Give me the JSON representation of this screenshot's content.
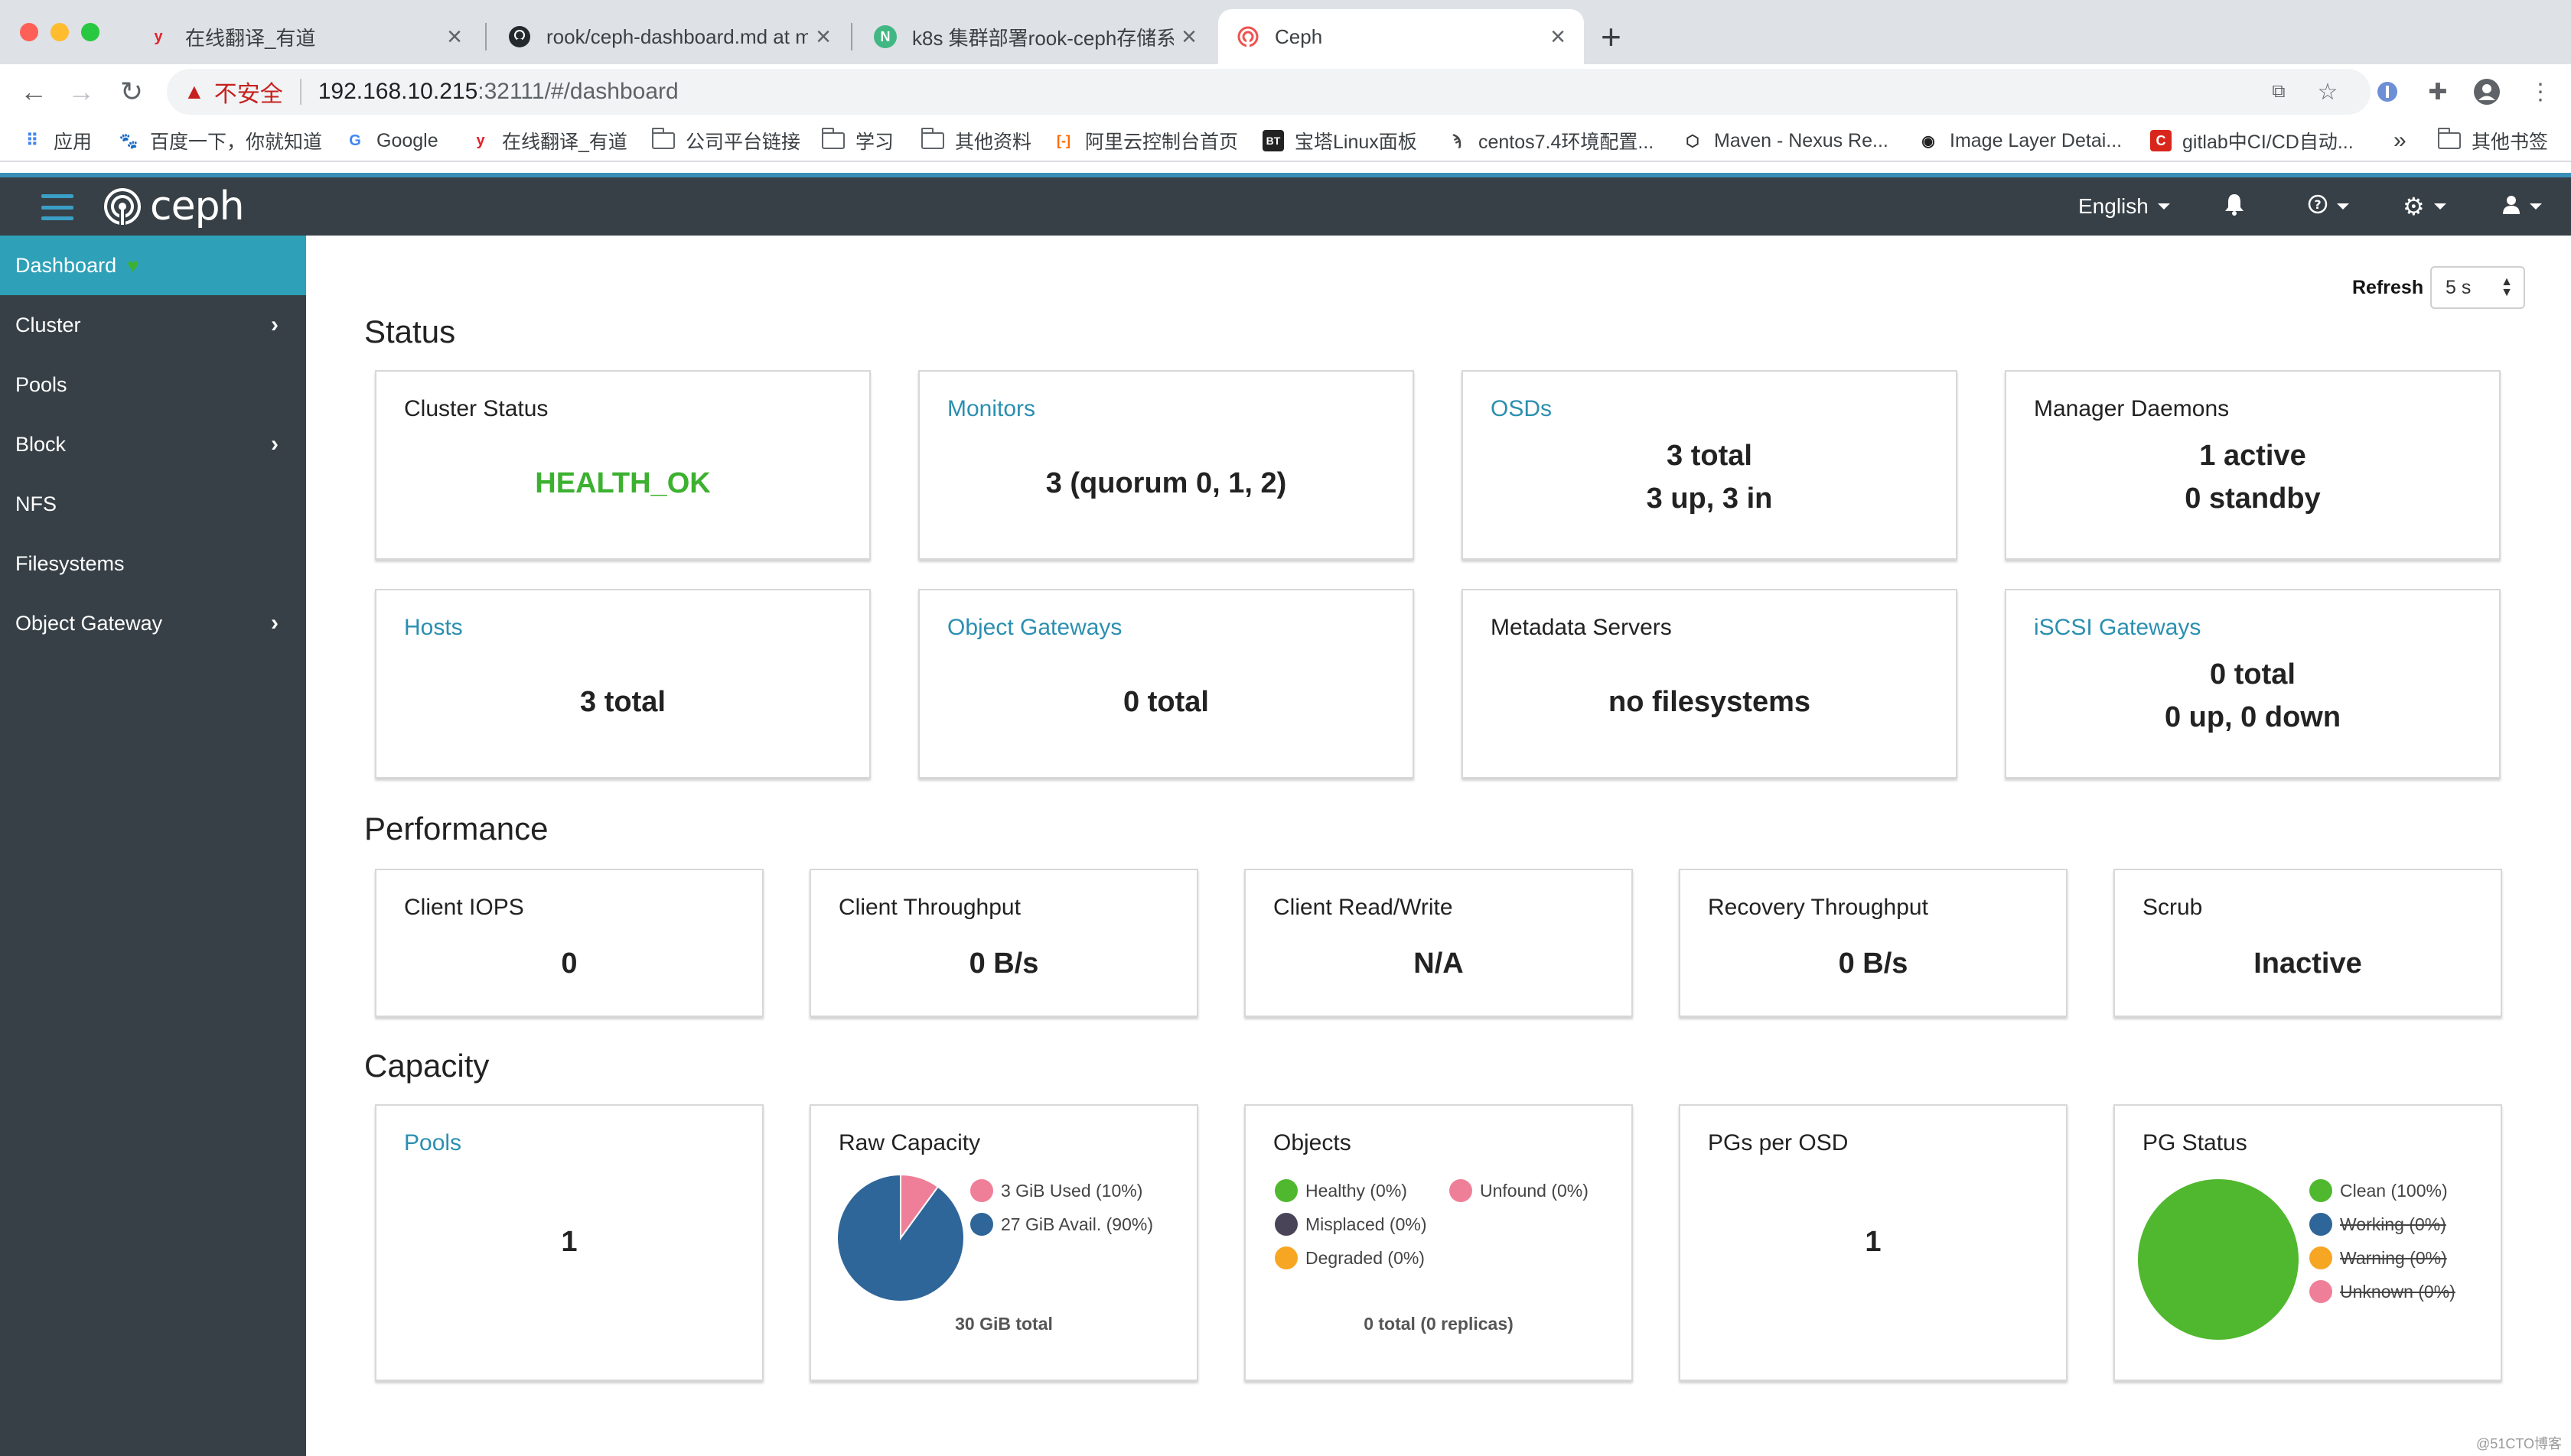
{
  "browser": {
    "tabs": [
      {
        "title": "在线翻译_有道",
        "favicon_icon": "youdao-icon",
        "favicon_glyph": "y"
      },
      {
        "title": "rook/ceph-dashboard.md at m",
        "favicon_icon": "github-icon",
        "favicon_glyph": ""
      },
      {
        "title": "k8s 集群部署rook-ceph存储系",
        "favicon_icon": "site-icon",
        "favicon_glyph": "N"
      },
      {
        "title": "Ceph",
        "favicon_icon": "ceph-icon",
        "favicon_glyph": ""
      }
    ],
    "new_tab_label": "+",
    "address": {
      "insecure_label": "不安全",
      "host": "192.168.10.215",
      "path": ":32111/#/dashboard"
    },
    "bookmarks": [
      {
        "label": "应用",
        "icon": "apps-grid-icon"
      },
      {
        "label": "百度一下，你就知道",
        "icon": "baidu-icon"
      },
      {
        "label": "Google",
        "icon": "google-icon",
        "glyph": "G"
      },
      {
        "label": "在线翻译_有道",
        "icon": "youdao-icon",
        "glyph": "y"
      },
      {
        "label": "公司平台链接",
        "icon": "folder-icon"
      },
      {
        "label": "学习",
        "icon": "folder-icon"
      },
      {
        "label": "其他资料",
        "icon": "folder-icon"
      },
      {
        "label": "阿里云控制台首页",
        "icon": "aliyun-icon",
        "glyph": "[-]"
      },
      {
        "label": "宝塔Linux面板",
        "icon": "bt-icon",
        "glyph": "BT"
      },
      {
        "label": "centos7.4环境配置...",
        "icon": "centos-icon"
      },
      {
        "label": "Maven - Nexus Re...",
        "icon": "nexus-icon"
      },
      {
        "label": "Image Layer Detai...",
        "icon": "image-layer-icon"
      },
      {
        "label": "gitlab中CI/CD自动...",
        "icon": "gitlab-icon",
        "glyph": "C"
      }
    ],
    "bookmarks_overflow": "»",
    "other_bookmarks": "其他书签"
  },
  "navbar": {
    "brand": "ceph",
    "language": "English"
  },
  "sidebar": {
    "items": [
      {
        "label": "Dashboard",
        "active": true,
        "has_children": false
      },
      {
        "label": "Cluster",
        "active": false,
        "has_children": true
      },
      {
        "label": "Pools",
        "active": false,
        "has_children": false
      },
      {
        "label": "Block",
        "active": false,
        "has_children": true
      },
      {
        "label": "NFS",
        "active": false,
        "has_children": false
      },
      {
        "label": "Filesystems",
        "active": false,
        "has_children": false
      },
      {
        "label": "Object Gateway",
        "active": false,
        "has_children": true
      }
    ]
  },
  "refresh": {
    "label": "Refresh",
    "value": "5 s"
  },
  "status": {
    "title": "Status",
    "cluster_status": {
      "title": "Cluster Status",
      "value": "HEALTH_OK"
    },
    "monitors": {
      "title": "Monitors",
      "value": "3 (quorum 0, 1, 2)"
    },
    "osds": {
      "title": "OSDs",
      "line1": "3 total",
      "line2": "3 up, 3 in"
    },
    "manager_daemons": {
      "title": "Manager Daemons",
      "line1": "1 active",
      "line2": "0 standby"
    },
    "hosts": {
      "title": "Hosts",
      "value": "3 total"
    },
    "object_gateways": {
      "title": "Object Gateways",
      "value": "0 total"
    },
    "metadata_servers": {
      "title": "Metadata Servers",
      "value": "no filesystems"
    },
    "iscsi_gateways": {
      "title": "iSCSI Gateways",
      "line1": "0 total",
      "line2": "0 up, 0 down"
    }
  },
  "performance": {
    "title": "Performance",
    "client_iops": {
      "title": "Client IOPS",
      "value": "0"
    },
    "client_throughput": {
      "title": "Client Throughput",
      "value": "0 B/s"
    },
    "client_read_write": {
      "title": "Client Read/Write",
      "value": "N/A"
    },
    "recovery_throughput": {
      "title": "Recovery Throughput",
      "value": "0 B/s"
    },
    "scrub": {
      "title": "Scrub",
      "value": "Inactive"
    }
  },
  "capacity": {
    "title": "Capacity",
    "pools": {
      "title": "Pools",
      "value": "1"
    },
    "raw_capacity": {
      "title": "Raw Capacity",
      "used_label": "3 GiB Used (10%)",
      "avail_label": "27 GiB Avail. (90%)",
      "total": "30 GiB total"
    },
    "objects": {
      "title": "Objects",
      "healthy": "Healthy (0%)",
      "unfound": "Unfound (0%)",
      "misplaced": "Misplaced (0%)",
      "degraded": "Degraded (0%)",
      "total": "0 total (0 replicas)"
    },
    "pgs_per_osd": {
      "title": "PGs per OSD",
      "value": "1"
    },
    "pg_status": {
      "title": "PG Status",
      "clean": "Clean (100%)",
      "working": "Working (0%)",
      "warning": "Warning (0%)",
      "unknown": "Unknown (0%)"
    }
  },
  "chart_data": [
    {
      "type": "pie",
      "title": "Raw Capacity",
      "categories": [
        "Used",
        "Avail."
      ],
      "values": [
        10,
        90
      ],
      "colors": [
        "#ef7f98",
        "#2f6699"
      ]
    },
    {
      "type": "pie",
      "title": "PG Status",
      "categories": [
        "Clean",
        "Working",
        "Warning",
        "Unknown"
      ],
      "values": [
        100,
        0,
        0,
        0
      ],
      "colors": [
        "#50b82e",
        "#2f6699",
        "#f6a623",
        "#ef7f98"
      ]
    }
  ],
  "colors": {
    "accent": "#2ea0b8",
    "nav_bg": "#374046",
    "health_ok": "#3cb130",
    "link": "#2b8fb0"
  },
  "watermark": "@51CTO博客"
}
